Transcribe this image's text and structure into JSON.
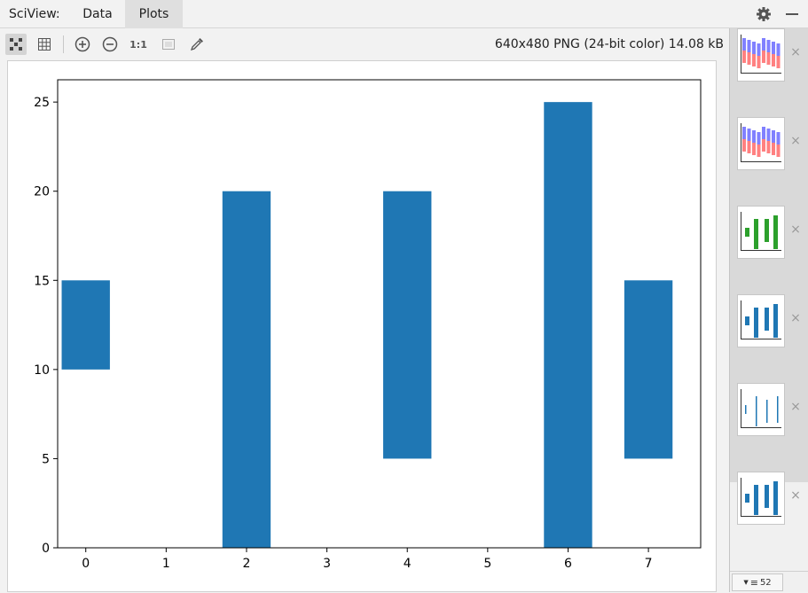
{
  "app": {
    "title": "SciView:"
  },
  "tabs": [
    {
      "label": "Data"
    },
    {
      "label": "Plots"
    }
  ],
  "toolbar": {
    "actual_size_label": "1:1",
    "image_info": "640x480 PNG (24-bit color) 14.08 kB"
  },
  "chart_data": {
    "type": "bar",
    "x": [
      0,
      2,
      4,
      6,
      7
    ],
    "bars": [
      {
        "x": 0,
        "bottom": 10,
        "top": 15
      },
      {
        "x": 2,
        "bottom": 0,
        "top": 20
      },
      {
        "x": 4,
        "bottom": 5,
        "top": 20
      },
      {
        "x": 6,
        "bottom": 0,
        "top": 25
      },
      {
        "x": 7,
        "bottom": 5,
        "top": 15
      }
    ],
    "bar_color": "#1f77b4",
    "xlim": [
      -0.35,
      7.65
    ],
    "ylim": [
      0,
      26.25
    ],
    "xticks": [
      "0",
      "1",
      "2",
      "3",
      "4",
      "5",
      "6",
      "7"
    ],
    "yticks": [
      "0",
      "5",
      "10",
      "15",
      "20",
      "25"
    ],
    "title": "",
    "xlabel": "",
    "ylabel": "",
    "grid": false
  },
  "sidebar": {
    "thumbnails": [
      {
        "kind": "stacked-bars",
        "colors": [
          "#8080ff",
          "#ff8080"
        ]
      },
      {
        "kind": "stacked-bars",
        "colors": [
          "#8080ff",
          "#ff8080"
        ]
      },
      {
        "kind": "floating-bars",
        "colors": [
          "#2ca02c"
        ]
      },
      {
        "kind": "floating-bars",
        "colors": [
          "#1f77b4"
        ]
      },
      {
        "kind": "thin-bars",
        "colors": [
          "#1f77b4"
        ]
      },
      {
        "kind": "floating-bars",
        "colors": [
          "#1f77b4"
        ],
        "active": true
      }
    ],
    "close_glyph": "×",
    "footer_count": "52"
  }
}
